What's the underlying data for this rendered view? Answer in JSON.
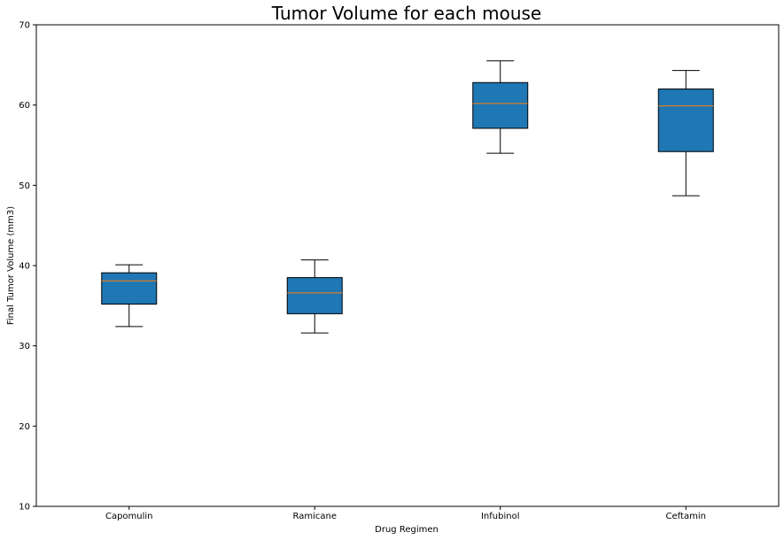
{
  "chart_data": {
    "type": "box",
    "title": "Tumor Volume for each mouse",
    "xlabel": "Drug Regimen",
    "ylabel": "Final Tumor Volume (mm3)",
    "ylim": [
      10,
      70
    ],
    "yticks": [
      10,
      20,
      30,
      40,
      50,
      60,
      70
    ],
    "grid": false,
    "categories": [
      "Capomulin",
      "Ramicane",
      "Infubinol",
      "Ceftamin"
    ],
    "boxes": [
      {
        "name": "Capomulin",
        "whisker_low": 32.4,
        "q1": 35.2,
        "median": 38.1,
        "q3": 39.1,
        "whisker_high": 40.1
      },
      {
        "name": "Ramicane",
        "whisker_low": 31.6,
        "q1": 34.0,
        "median": 36.6,
        "q3": 38.5,
        "whisker_high": 40.7
      },
      {
        "name": "Infubinol",
        "whisker_low": 54.0,
        "q1": 57.1,
        "median": 60.2,
        "q3": 62.8,
        "whisker_high": 65.5
      },
      {
        "name": "Ceftamin",
        "whisker_low": 48.7,
        "q1": 54.2,
        "median": 59.9,
        "q3": 62.0,
        "whisker_high": 64.3
      }
    ],
    "colors": {
      "box_fill": "#1f77b4",
      "median": "#ff7f0e",
      "line": "#000000"
    }
  }
}
